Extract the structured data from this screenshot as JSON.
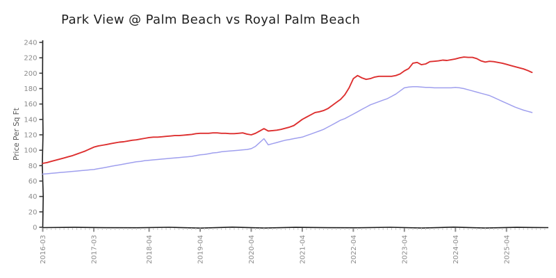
{
  "chart_data": {
    "type": "line",
    "title": "Park View @ Palm Beach vs Royal Palm Beach",
    "xlabel": "",
    "ylabel": "Price Per Sq Ft",
    "ylim": [
      0,
      240
    ],
    "ytick_interval": 20,
    "grid": false,
    "legend_position": "none",
    "style": "xkcd-handdrawn",
    "x_start": "2016-03",
    "x_end": "2025-10",
    "x_frequency": "monthly",
    "x_tick_labels": [
      "2016-03",
      "2017-03",
      "2018-04",
      "2019-04",
      "2020-04",
      "2021-04",
      "2022-04",
      "2023-04",
      "2024-04",
      "2025-04"
    ],
    "x_tick_month_index": [
      0,
      12,
      25,
      37,
      49,
      61,
      73,
      85,
      97,
      109
    ],
    "colors": {
      "axis": "#1b1b1b",
      "major_tick": "#8f8f8f",
      "minor_tick": "#c9c9c9",
      "tick_label": "#8a8a8a",
      "title": "#1f1f1f",
      "ylabel": "#555555",
      "background": "#ffffff"
    },
    "series": [
      {
        "name": "Park View @ Palm Beach",
        "color": "#dd2f2f",
        "values": [
          83,
          84,
          85.5,
          87,
          88.5,
          90,
          91.5,
          93,
          95,
          97,
          99,
          101.5,
          104,
          105.5,
          106.5,
          107.5,
          108.5,
          109.5,
          110.5,
          111,
          112,
          113,
          113.5,
          114.5,
          115.5,
          116.5,
          117,
          117,
          117.5,
          118,
          118.5,
          119,
          119,
          119.5,
          120,
          120.5,
          121.5,
          122,
          122,
          122,
          122.5,
          122.5,
          122,
          122,
          121.5,
          121.5,
          122,
          122.5,
          121,
          120,
          122,
          125,
          128,
          125,
          125.5,
          126,
          127,
          128.5,
          130,
          132,
          136,
          140,
          143,
          146,
          149,
          150,
          151.5,
          154,
          158,
          162,
          166,
          172,
          181,
          193,
          197,
          194,
          192,
          193,
          195,
          196,
          196,
          196,
          196,
          197,
          199,
          203,
          206,
          213,
          214,
          211,
          212,
          215,
          215.5,
          216,
          217,
          216.5,
          217.5,
          218.5,
          220,
          221,
          220.5,
          220.5,
          219,
          216,
          214.5,
          215.5,
          215,
          214,
          213,
          211.5,
          210,
          208.5,
          207,
          205.5,
          203.5,
          201
        ]
      },
      {
        "name": "Royal Palm Beach",
        "color": "#9f9fee",
        "values": [
          69,
          69.5,
          70,
          70.5,
          71,
          71.5,
          72,
          72.5,
          73,
          73.5,
          74,
          74.5,
          75,
          76,
          77,
          78,
          79,
          80,
          81,
          82,
          83,
          84,
          85,
          85.5,
          86.5,
          87,
          87.5,
          88,
          88.5,
          89,
          89.5,
          90,
          90.5,
          91,
          91.5,
          92,
          93,
          94,
          94.5,
          95.5,
          96.5,
          97,
          98,
          98.5,
          99,
          99.5,
          100,
          100.5,
          101,
          102,
          105,
          110,
          115,
          107,
          108.5,
          110,
          111.5,
          113,
          114,
          115,
          116,
          117,
          119,
          121,
          123,
          125,
          127,
          130,
          133,
          136,
          139,
          141,
          144,
          147,
          150,
          153,
          156,
          159,
          161,
          163,
          165,
          167,
          170,
          173,
          177,
          181,
          182,
          182.5,
          182.5,
          182,
          181.5,
          181.5,
          181,
          181,
          181,
          181,
          181,
          181.5,
          181,
          180,
          178.5,
          177,
          175.5,
          174,
          172.5,
          171,
          168.5,
          166,
          163.5,
          161,
          158.5,
          156,
          154,
          152,
          150.5,
          149
        ]
      }
    ]
  }
}
